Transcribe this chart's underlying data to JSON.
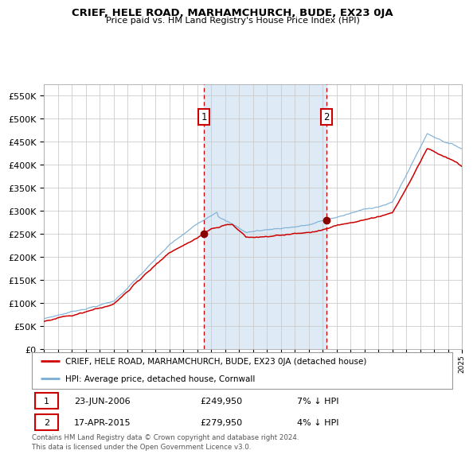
{
  "title": "CRIEF, HELE ROAD, MARHAMCHURCH, BUDE, EX23 0JA",
  "subtitle": "Price paid vs. HM Land Registry's House Price Index (HPI)",
  "legend_line1": "CRIEF, HELE ROAD, MARHAMCHURCH, BUDE, EX23 0JA (detached house)",
  "legend_line2": "HPI: Average price, detached house, Cornwall",
  "annotation1_label": "1",
  "annotation1_date": "23-JUN-2006",
  "annotation1_price": "£249,950",
  "annotation1_pct": "7% ↓ HPI",
  "annotation2_label": "2",
  "annotation2_date": "17-APR-2015",
  "annotation2_price": "£279,950",
  "annotation2_pct": "4% ↓ HPI",
  "footer": "Contains HM Land Registry data © Crown copyright and database right 2024.\nThis data is licensed under the Open Government Licence v3.0.",
  "red_line_color": "#cc0000",
  "blue_line_color": "#7aaed6",
  "shading_color": "#deeaf5",
  "grid_color": "#cccccc",
  "background_color": "#ffffff",
  "annotation_box_color": "#cc0000",
  "dashed_line_color": "#cc0000",
  "ylim": [
    0,
    575000
  ],
  "yticks": [
    0,
    50000,
    100000,
    150000,
    200000,
    250000,
    300000,
    350000,
    400000,
    450000,
    500000,
    550000
  ],
  "sale1_year": 2006.47,
  "sale1_value": 249950,
  "sale2_year": 2015.29,
  "sale2_value": 279950,
  "xmin": 1995,
  "xmax": 2025
}
